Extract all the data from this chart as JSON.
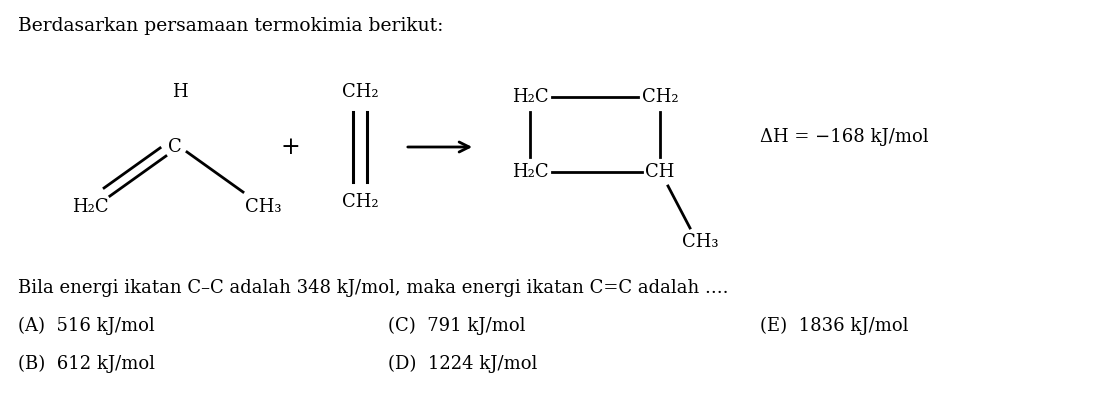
{
  "title": "Berdasarkan persamaan termokimia berikut:",
  "question_text": "Bila energi ikatan C–C adalah 348 kJ/mol, maka energi ikatan C=C adalah ....",
  "answer_A": "(A)  516 kJ/mol",
  "answer_B": "(B)  612 kJ/mol",
  "answer_C": "(C)  791 kJ/mol",
  "answer_D": "(D)  1224 kJ/mol",
  "answer_E": "(E)  1836 kJ/mol",
  "delta_H": "ΔH = −168 kJ/mol",
  "bg_color": "#ffffff",
  "text_color": "#000000",
  "font_size_title": 13.5,
  "font_size_body": 13,
  "font_size_chem": 13
}
